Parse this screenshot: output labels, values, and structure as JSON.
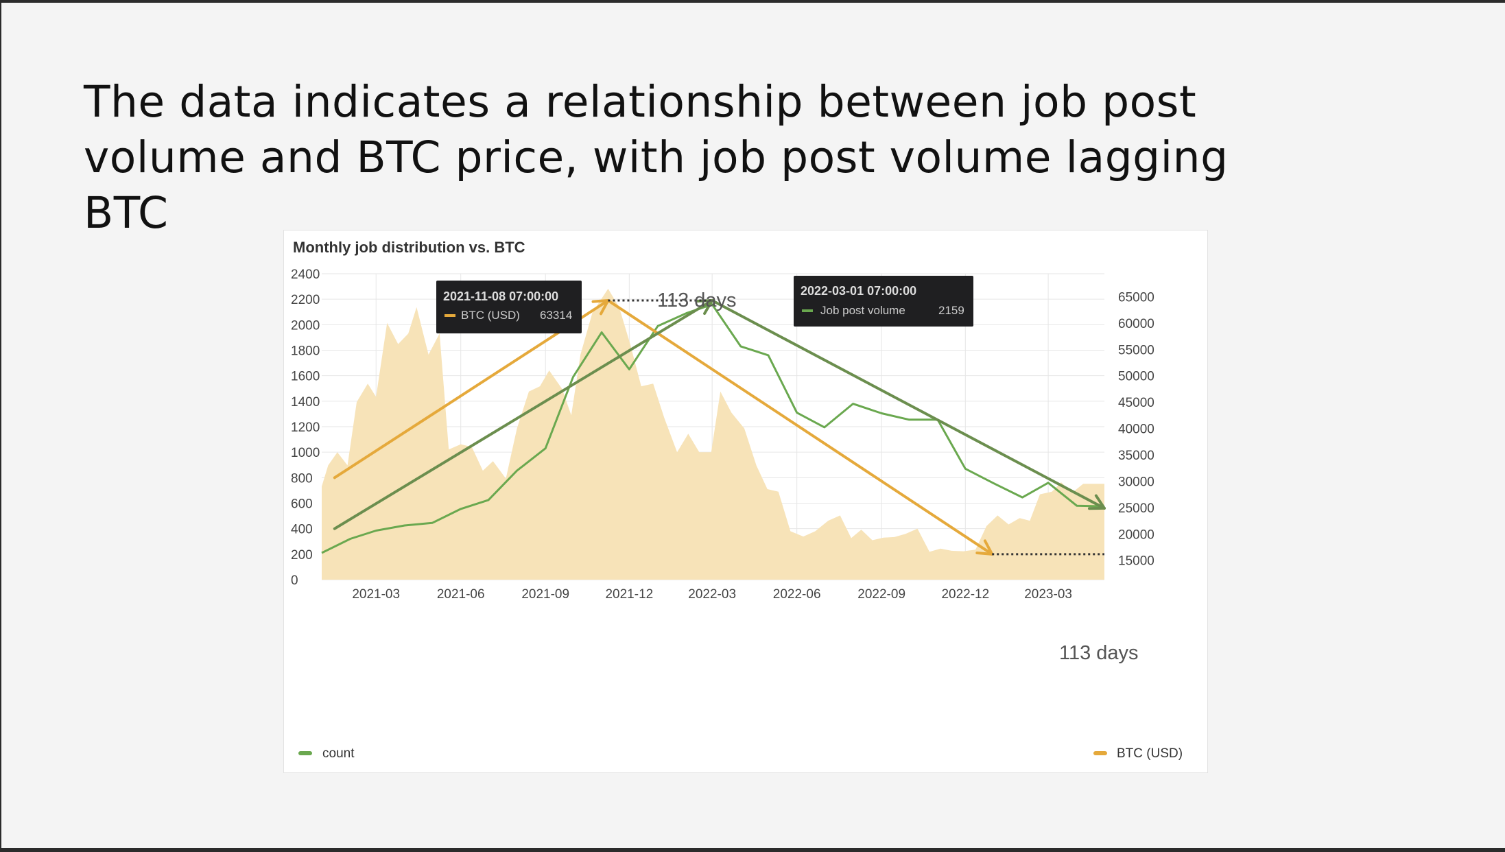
{
  "slide": {
    "title": "The data indicates a relationship between job post volume and BTC price, with job post volume lagging BTC"
  },
  "panel": {
    "title": "Monthly job distribution vs. BTC"
  },
  "tooltips": {
    "btc": {
      "time": "2021-11-08 07:00:00",
      "label": "BTC (USD)",
      "value": "63314",
      "color": "#e5a93b"
    },
    "jobs": {
      "time": "2022-03-01 07:00:00",
      "label": "Job post volume",
      "value": "2159",
      "color": "#6aa84f"
    }
  },
  "annotations": {
    "lag_top": "113 days",
    "lag_bottom": "113 days"
  },
  "legend": {
    "left": "count",
    "right": "BTC (USD)"
  },
  "colors": {
    "count_line": "#6aa84f",
    "btc_fill": "#f7e3b8",
    "btc_arrow": "#e5a93b",
    "count_arrow": "#6b8e4e",
    "grid": "#e6e6e6"
  },
  "chart_data": {
    "type": "line",
    "title": "Monthly job distribution vs. BTC",
    "x_ticks": [
      "2021-03",
      "2021-06",
      "2021-09",
      "2021-12",
      "2022-03",
      "2022-06",
      "2022-09",
      "2022-12",
      "2023-03"
    ],
    "y_left": {
      "label": "count",
      "range": [
        0,
        2400
      ],
      "ticks": [
        0,
        200,
        400,
        600,
        800,
        1000,
        1200,
        1400,
        1600,
        1800,
        2000,
        2200,
        2400
      ]
    },
    "y_right": {
      "label": "BTC (USD)",
      "range": [
        11320,
        69348
      ],
      "ticks": [
        15000,
        20000,
        25000,
        30000,
        35000,
        40000,
        45000,
        50000,
        55000,
        60000,
        65000
      ]
    },
    "x_range": [
      "2021-01-01",
      "2023-05-01"
    ],
    "grid": true,
    "legend_placement": "bottom",
    "series": [
      {
        "name": "count",
        "type": "line",
        "axis": "left",
        "points": [
          [
            "2021-01-01",
            210
          ],
          [
            "2021-02-01",
            320
          ],
          [
            "2021-03-01",
            385
          ],
          [
            "2021-04-01",
            425
          ],
          [
            "2021-05-01",
            445
          ],
          [
            "2021-06-01",
            555
          ],
          [
            "2021-07-01",
            625
          ],
          [
            "2021-08-01",
            855
          ],
          [
            "2021-09-01",
            1030
          ],
          [
            "2021-10-01",
            1590
          ],
          [
            "2021-11-01",
            1940
          ],
          [
            "2021-12-01",
            1650
          ],
          [
            "2022-01-01",
            1990
          ],
          [
            "2022-02-01",
            2090
          ],
          [
            "2022-03-01",
            2159
          ],
          [
            "2022-04-01",
            1830
          ],
          [
            "2022-05-01",
            1760
          ],
          [
            "2022-06-01",
            1310
          ],
          [
            "2022-07-01",
            1195
          ],
          [
            "2022-08-01",
            1380
          ],
          [
            "2022-09-01",
            1305
          ],
          [
            "2022-10-01",
            1255
          ],
          [
            "2022-11-01",
            1255
          ],
          [
            "2022-12-01",
            870
          ],
          [
            "2023-01-01",
            755
          ],
          [
            "2023-02-01",
            645
          ],
          [
            "2023-03-01",
            760
          ],
          [
            "2023-04-01",
            580
          ],
          [
            "2023-05-01",
            575
          ]
        ]
      },
      {
        "name": "BTC (USD)",
        "type": "area",
        "axis": "right",
        "points": [
          [
            "2021-01-01",
            29000
          ],
          [
            "2021-01-08",
            33000
          ],
          [
            "2021-01-18",
            35500
          ],
          [
            "2021-01-29",
            33000
          ],
          [
            "2021-02-08",
            45000
          ],
          [
            "2021-02-20",
            48500
          ],
          [
            "2021-03-01",
            46000
          ],
          [
            "2021-03-13",
            60000
          ],
          [
            "2021-03-25",
            56000
          ],
          [
            "2021-04-05",
            58000
          ],
          [
            "2021-04-14",
            63000
          ],
          [
            "2021-04-27",
            54000
          ],
          [
            "2021-05-09",
            58000
          ],
          [
            "2021-05-19",
            36000
          ],
          [
            "2021-06-01",
            37000
          ],
          [
            "2021-06-13",
            36500
          ],
          [
            "2021-06-25",
            32000
          ],
          [
            "2021-07-06",
            33800
          ],
          [
            "2021-07-20",
            30500
          ],
          [
            "2021-08-01",
            40000
          ],
          [
            "2021-08-14",
            47000
          ],
          [
            "2021-08-26",
            48000
          ],
          [
            "2021-09-05",
            51000
          ],
          [
            "2021-09-19",
            47500
          ],
          [
            "2021-09-29",
            42500
          ],
          [
            "2021-10-09",
            54000
          ],
          [
            "2021-10-22",
            62000
          ],
          [
            "2021-11-08",
            66500
          ],
          [
            "2021-11-20",
            63000
          ],
          [
            "2021-12-02",
            56000
          ],
          [
            "2021-12-14",
            48000
          ],
          [
            "2021-12-27",
            48500
          ],
          [
            "2022-01-08",
            42000
          ],
          [
            "2022-01-22",
            35500
          ],
          [
            "2022-02-03",
            39000
          ],
          [
            "2022-02-15",
            35500
          ],
          [
            "2022-02-28",
            35500
          ],
          [
            "2022-03-10",
            47000
          ],
          [
            "2022-03-22",
            43000
          ],
          [
            "2022-04-05",
            40000
          ],
          [
            "2022-04-18",
            33000
          ],
          [
            "2022-04-30",
            28500
          ],
          [
            "2022-05-12",
            28000
          ],
          [
            "2022-05-25",
            20500
          ],
          [
            "2022-06-08",
            19500
          ],
          [
            "2022-06-21",
            20500
          ],
          [
            "2022-07-05",
            22500
          ],
          [
            "2022-07-18",
            23500
          ],
          [
            "2022-07-30",
            19200
          ],
          [
            "2022-08-10",
            20800
          ],
          [
            "2022-08-22",
            18800
          ],
          [
            "2022-09-03",
            19300
          ],
          [
            "2022-09-15",
            19400
          ],
          [
            "2022-09-27",
            20000
          ],
          [
            "2022-10-10",
            21000
          ],
          [
            "2022-10-23",
            16600
          ],
          [
            "2022-11-04",
            17200
          ],
          [
            "2022-11-16",
            16800
          ],
          [
            "2022-11-29",
            16700
          ],
          [
            "2022-12-12",
            17000
          ],
          [
            "2022-12-24",
            21500
          ],
          [
            "2023-01-05",
            23500
          ],
          [
            "2023-01-17",
            21800
          ],
          [
            "2023-01-29",
            23000
          ],
          [
            "2023-02-09",
            22500
          ],
          [
            "2023-02-20",
            27500
          ],
          [
            "2023-03-05",
            28000
          ],
          [
            "2023-03-15",
            29800
          ],
          [
            "2023-03-27",
            27800
          ],
          [
            "2023-04-08",
            29500
          ],
          [
            "2023-05-01",
            29500
          ]
        ]
      }
    ],
    "trend_arrows": [
      {
        "series": "BTC (USD)",
        "axis": "left",
        "points": [
          [
            "2021-01-15",
            800
          ],
          [
            "2021-11-08",
            2190
          ],
          [
            "2022-12-30",
            200
          ]
        ]
      },
      {
        "series": "count",
        "axis": "left",
        "points": [
          [
            "2021-01-15",
            400
          ],
          [
            "2022-03-01",
            2190
          ],
          [
            "2023-05-01",
            560
          ]
        ]
      }
    ]
  }
}
